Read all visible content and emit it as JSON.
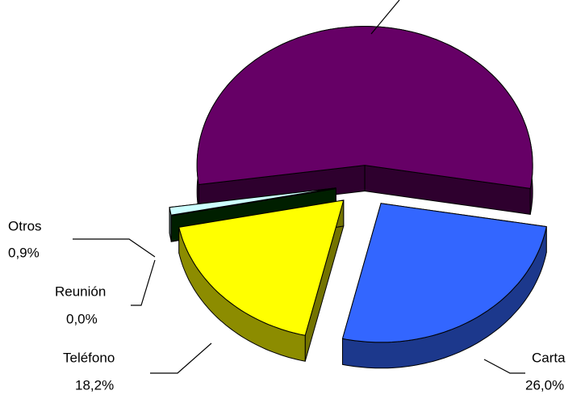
{
  "chart_data": {
    "type": "pie",
    "categories": [
      null,
      "Carta",
      "Teléfono",
      "Reunión",
      "Otros"
    ],
    "values": [
      54.9,
      26.0,
      18.2,
      0.0,
      0.9
    ],
    "value_labels": [
      null,
      "26,0%",
      "18,2%",
      "0,0%",
      "0,9%"
    ],
    "colors": [
      "#660066",
      "#3366ff",
      "#ffff00",
      "#004400",
      "#ccffff"
    ]
  }
}
